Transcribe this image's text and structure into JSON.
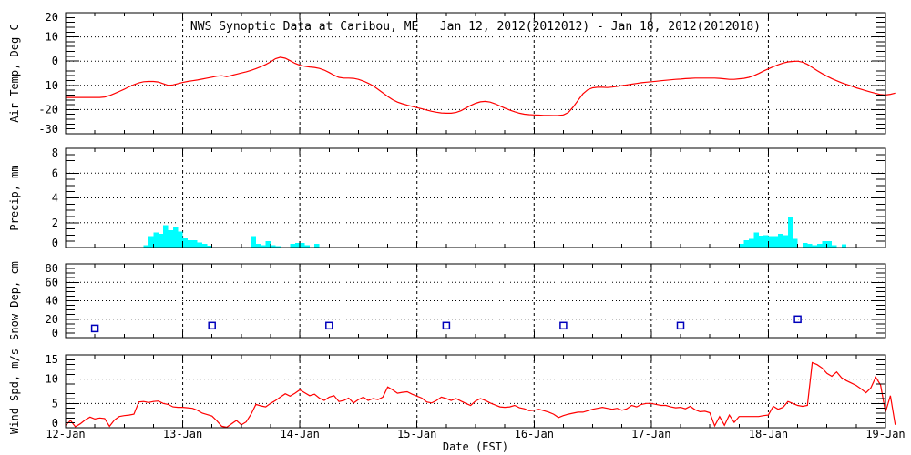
{
  "title": "NWS Synoptic Data at Caribou, ME   Jan 12, 2012(2012012) - Jan 18, 2012(2012018)",
  "colors": {
    "temp_line": "#ff0000",
    "wind_line": "#ff0000",
    "precip_bar": "#00ffff",
    "snow_marker": "#0000bb",
    "axis": "#000000",
    "background": "#ffffff"
  },
  "xaxis": {
    "label": "Date (EST)",
    "ticks": [
      "12-Jan",
      "13-Jan",
      "14-Jan",
      "15-Jan",
      "16-Jan",
      "17-Jan",
      "18-Jan",
      "19-Jan"
    ],
    "hours_total": 168,
    "hours_per_day": 24,
    "minor_tick_hours": 6
  },
  "chart_data": [
    {
      "type": "line",
      "name": "air-temp",
      "ylabel": "Air Temp, Deg C",
      "ylim": [
        -30,
        20
      ],
      "yticks": [
        20,
        10,
        0,
        -10,
        -20,
        -30
      ],
      "ytick_minor": 2,
      "color": "#ff0000",
      "x_start_hour": 0,
      "values": [
        -15,
        -15,
        -15,
        -15,
        -15,
        -15,
        -15,
        -15,
        -14.8,
        -14.2,
        -13.4,
        -12.5,
        -11.6,
        -10.6,
        -9.7,
        -9.0,
        -8.5,
        -8.4,
        -8.4,
        -8.6,
        -9.3,
        -10.0,
        -9.8,
        -9.3,
        -8.8,
        -8.4,
        -8.1,
        -7.8,
        -7.4,
        -7.0,
        -6.6,
        -6.2,
        -6.0,
        -6.4,
        -5.9,
        -5.4,
        -4.9,
        -4.4,
        -3.8,
        -3.1,
        -2.3,
        -1.4,
        -0.3,
        1.0,
        1.6,
        1.2,
        0.2,
        -0.9,
        -1.7,
        -2.1,
        -2.4,
        -2.6,
        -3.0,
        -3.7,
        -4.7,
        -5.8,
        -6.7,
        -7.0,
        -7.0,
        -7.1,
        -7.5,
        -8.2,
        -9.1,
        -10.2,
        -11.6,
        -13.1,
        -14.6,
        -15.9,
        -16.9,
        -17.6,
        -18.2,
        -18.7,
        -19.2,
        -19.7,
        -20.2,
        -20.7,
        -21.1,
        -21.4,
        -21.5,
        -21.5,
        -21.2,
        -20.5,
        -19.4,
        -18.3,
        -17.4,
        -16.8,
        -16.6,
        -16.9,
        -17.6,
        -18.5,
        -19.4,
        -20.2,
        -20.9,
        -21.5,
        -21.9,
        -22.1,
        -22.2,
        -22.3,
        -22.4,
        -22.4,
        -22.5,
        -22.4,
        -22.2,
        -21.2,
        -19.0,
        -16.2,
        -13.5,
        -11.8,
        -11.0,
        -10.8,
        -10.8,
        -10.9,
        -10.7,
        -10.4,
        -10.1,
        -9.8,
        -9.5,
        -9.2,
        -8.9,
        -8.7,
        -8.5,
        -8.3,
        -8.1,
        -7.9,
        -7.7,
        -7.5,
        -7.4,
        -7.2,
        -7.1,
        -7.0,
        -7.0,
        -7.0,
        -7.0,
        -7.0,
        -7.1,
        -7.3,
        -7.5,
        -7.5,
        -7.3,
        -7.1,
        -6.7,
        -6.0,
        -5.1,
        -4.1,
        -3.2,
        -2.3,
        -1.5,
        -0.8,
        -0.3,
        -0.1,
        0.0,
        -0.4,
        -1.3,
        -2.6,
        -3.9,
        -5.1,
        -6.2,
        -7.2,
        -8.1,
        -8.9,
        -9.6,
        -10.3,
        -11.0,
        -11.6,
        -12.2,
        -12.8,
        -13.3,
        -13.8,
        -14.0,
        -13.7,
        -13.2
      ]
    },
    {
      "type": "bar",
      "name": "precip",
      "ylabel": "Precip, mm",
      "ylim": [
        0,
        8
      ],
      "yticks": [
        8,
        6,
        4,
        2,
        0
      ],
      "ytick_minor": 0.5,
      "color": "#00ffff",
      "points_hour_value": [
        [
          16,
          0.2
        ],
        [
          17,
          0.9
        ],
        [
          18,
          1.2
        ],
        [
          19,
          1.1
        ],
        [
          20,
          1.8
        ],
        [
          21,
          1.4
        ],
        [
          22,
          1.6
        ],
        [
          23,
          1.3
        ],
        [
          24,
          0.8
        ],
        [
          25,
          0.6
        ],
        [
          26,
          0.6
        ],
        [
          27,
          0.4
        ],
        [
          28,
          0.3
        ],
        [
          29,
          0.15
        ],
        [
          38,
          0.9
        ],
        [
          39,
          0.3
        ],
        [
          40,
          0.2
        ],
        [
          41,
          0.5
        ],
        [
          42,
          0.2
        ],
        [
          43,
          0.1
        ],
        [
          46,
          0.3
        ],
        [
          47,
          0.35
        ],
        [
          48,
          0.35
        ],
        [
          49,
          0.2
        ],
        [
          51,
          0.3
        ],
        [
          138,
          0.3
        ],
        [
          139,
          0.6
        ],
        [
          140,
          0.7
        ],
        [
          141,
          1.2
        ],
        [
          142,
          0.95
        ],
        [
          143,
          1.0
        ],
        [
          144,
          0.9
        ],
        [
          145,
          0.9
        ],
        [
          146,
          1.1
        ],
        [
          147,
          1.0
        ],
        [
          148,
          2.5
        ],
        [
          149,
          0.7
        ],
        [
          151,
          0.35
        ],
        [
          152,
          0.3
        ],
        [
          153,
          0.2
        ],
        [
          154,
          0.3
        ],
        [
          155,
          0.5
        ],
        [
          156,
          0.5
        ],
        [
          157,
          0.2
        ],
        [
          159,
          0.25
        ]
      ]
    },
    {
      "type": "scatter",
      "name": "snow-depth",
      "ylabel": "Snow Dep, cm",
      "ylim": [
        0,
        80
      ],
      "yticks": [
        80,
        60,
        40,
        20,
        0
      ],
      "ytick_minor": 5,
      "color": "#0000bb",
      "points_hour_value": [
        [
          6,
          10
        ],
        [
          30,
          13
        ],
        [
          54,
          13
        ],
        [
          78,
          13
        ],
        [
          102,
          13
        ],
        [
          126,
          13
        ],
        [
          150,
          20
        ]
      ]
    },
    {
      "type": "line",
      "name": "wind-speed",
      "ylabel": "Wind Spd, m/s",
      "ylim": [
        0,
        15
      ],
      "yticks": [
        15,
        10,
        5,
        0
      ],
      "ytick_minor": 1,
      "color": "#ff0000",
      "x_start_hour": 0,
      "values": [
        0.5,
        1.5,
        0.2,
        0.8,
        1.6,
        2.2,
        1.8,
        2.0,
        1.9,
        0.3,
        1.6,
        2.3,
        2.5,
        2.6,
        2.8,
        5.3,
        5.4,
        5.2,
        5.4,
        5.5,
        5.0,
        4.8,
        4.3,
        4.2,
        4.2,
        4.1,
        4.0,
        3.6,
        3.0,
        2.7,
        2.4,
        1.4,
        0.3,
        0.1,
        0.8,
        1.5,
        0.6,
        1.2,
        2.8,
        4.8,
        4.5,
        4.3,
        5.0,
        5.6,
        6.3,
        7.0,
        6.5,
        7.1,
        7.8,
        7.2,
        6.6,
        6.9,
        6.1,
        5.6,
        6.3,
        6.6,
        5.4,
        5.6,
        6.1,
        5.1,
        5.8,
        6.3,
        5.6,
        6.0,
        5.8,
        6.3,
        8.4,
        7.8,
        7.1,
        7.3,
        7.4,
        6.9,
        6.5,
        6.1,
        5.3,
        5.1,
        5.6,
        6.3,
        6.0,
        5.6,
        6.0,
        5.5,
        5.0,
        4.6,
        5.5,
        6.0,
        5.6,
        5.1,
        4.7,
        4.3,
        4.2,
        4.3,
        4.6,
        4.1,
        3.9,
        3.5,
        3.6,
        3.8,
        3.5,
        3.2,
        2.8,
        2.1,
        2.5,
        2.8,
        3.0,
        3.2,
        3.2,
        3.5,
        3.8,
        4.0,
        4.2,
        4.0,
        3.8,
        4.0,
        3.6,
        3.9,
        4.6,
        4.3,
        4.8,
        5.0,
        5.0,
        4.8,
        4.6,
        4.6,
        4.3,
        4.1,
        4.2,
        3.9,
        4.4,
        3.7,
        3.3,
        3.4,
        3.1,
        0.4,
        2.3,
        0.5,
        2.6,
        1.1,
        2.3,
        2.3,
        2.3,
        2.3,
        2.3,
        2.5,
        2.6,
        4.4,
        3.8,
        4.2,
        5.4,
        5.0,
        4.6,
        4.4,
        4.6,
        13.4,
        13.0,
        12.3,
        11.2,
        10.6,
        11.5,
        10.3,
        9.7,
        9.2,
        8.7,
        8.0,
        7.2,
        8.2,
        10.4,
        8.8,
        3.2,
        6.6,
        0.6
      ]
    }
  ]
}
